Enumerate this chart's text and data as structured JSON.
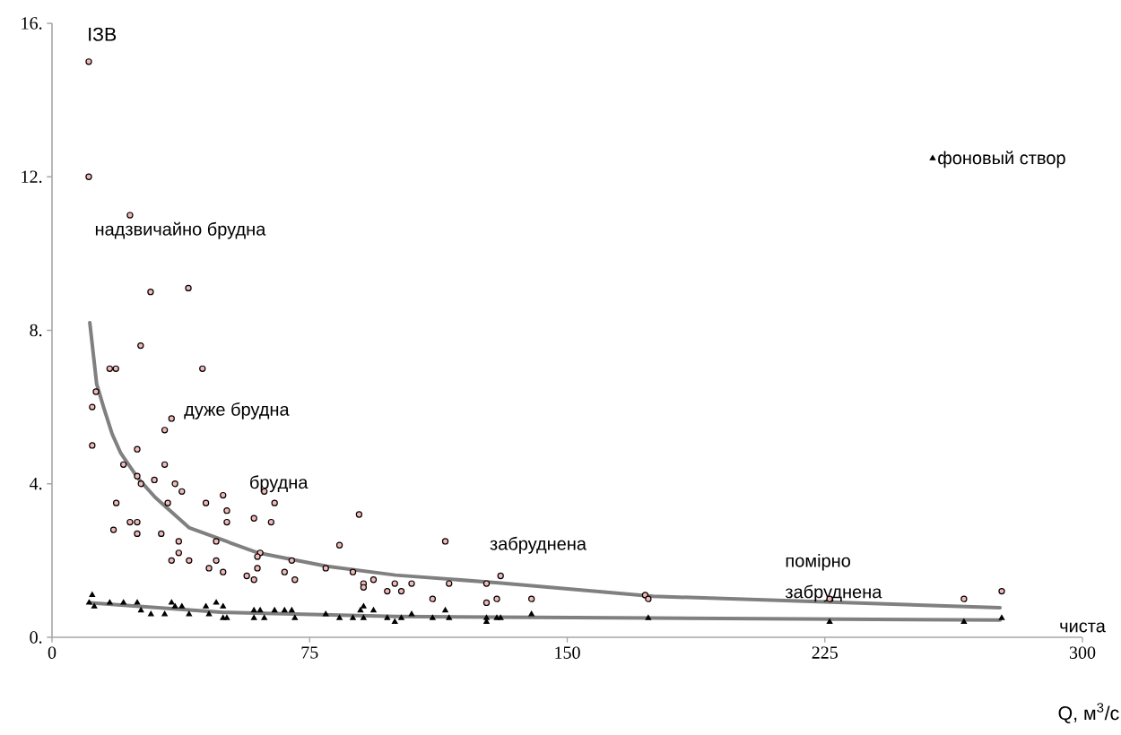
{
  "chart_data": {
    "type": "scatter",
    "xlabel": "Q, м$^{3}$/с",
    "ylabel": "ІЗВ",
    "xlim": [
      0,
      300
    ],
    "ylim": [
      0,
      16
    ],
    "xticks": [
      0,
      75,
      150,
      225,
      300
    ],
    "yticks": [
      {
        "value": 0,
        "label": "0."
      },
      {
        "value": 4,
        "label": "4."
      },
      {
        "value": 8,
        "label": "8."
      },
      {
        "value": 12,
        "label": "12."
      },
      {
        "value": 16,
        "label": "16."
      }
    ],
    "grid": false,
    "legend": "right",
    "annotations": [
      "надзвичайно брудна",
      "дуже брудна",
      "брудна",
      "забруднена",
      "помірно забруднена",
      "чиста"
    ],
    "series": [
      {
        "marker": "circle",
        "color": "#f4b8b8",
        "x": [
          10.7,
          10.7,
          22.7,
          28.7,
          39.7,
          16.8,
          18.6,
          25.8,
          43.8,
          12.8,
          11.7,
          34.8,
          32.8,
          11.7,
          24.8,
          20.8,
          32.8,
          24.8,
          29.8,
          25.9,
          35.8,
          37.8,
          49.8,
          61.8,
          33.7,
          18.7,
          44.8,
          64.8,
          50.9,
          50.9,
          58.8,
          63.8,
          22.7,
          24.8,
          17.9,
          24.8,
          31.8,
          36.9,
          47.8,
          36.9,
          34.8,
          39.9,
          47.8,
          45.7,
          49.8,
          60.6,
          59.8,
          59.8,
          56.7,
          58.8,
          67.7,
          69.8,
          70.7,
          83.7,
          79.7,
          87.6,
          89.4,
          114.5,
          90.7,
          90.7,
          93.6,
          97.6,
          99.8,
          101.7,
          104.7,
          110.8,
          115.6,
          126.5,
          126.5,
          129.5,
          130.6,
          139.6,
          172.7,
          173.6,
          226.4,
          265.5,
          276.5
        ],
        "values": [
          15.0,
          12.0,
          11.0,
          9.0,
          9.1,
          7.0,
          7.0,
          7.6,
          7.0,
          6.4,
          6.0,
          5.7,
          5.4,
          5.0,
          4.9,
          4.5,
          4.5,
          4.2,
          4.1,
          4.0,
          4.0,
          3.8,
          3.7,
          3.8,
          3.5,
          3.5,
          3.5,
          3.5,
          3.3,
          3.0,
          3.1,
          3.0,
          3.0,
          3.0,
          2.8,
          2.7,
          2.7,
          2.5,
          2.5,
          2.2,
          2.0,
          2.0,
          2.0,
          1.8,
          1.7,
          2.2,
          2.1,
          1.8,
          1.6,
          1.5,
          1.7,
          2.0,
          1.5,
          2.4,
          1.8,
          1.7,
          3.2,
          2.5,
          1.4,
          1.3,
          1.5,
          1.2,
          1.4,
          1.2,
          1.4,
          1.0,
          1.4,
          1.4,
          0.9,
          1.0,
          1.6,
          1.0,
          1.1,
          1.0,
          1.0,
          1.0,
          1.2
        ]
      },
      {
        "marker": "triangle",
        "name": "фоновый створ",
        "color": "#000000",
        "x": [
          11.7,
          10.8,
          12.3,
          16.8,
          20.8,
          24.8,
          25.9,
          28.8,
          32.8,
          34.8,
          35.8,
          37.8,
          39.9,
          44.8,
          45.7,
          47.8,
          49.8,
          49.8,
          50.9,
          58.8,
          58.8,
          60.6,
          61.8,
          64.8,
          67.7,
          69.8,
          70.7,
          79.7,
          83.7,
          87.6,
          90.7,
          89.8,
          93.6,
          90.7,
          97.6,
          99.8,
          101.7,
          104.7,
          110.8,
          114.5,
          115.6,
          126.5,
          126.5,
          129.5,
          130.6,
          139.6,
          173.6,
          226.4,
          265.5,
          276.5
        ],
        "values": [
          1.1,
          0.9,
          0.8,
          0.9,
          0.9,
          0.9,
          0.7,
          0.6,
          0.6,
          0.9,
          0.8,
          0.8,
          0.6,
          0.8,
          0.6,
          0.9,
          0.8,
          0.5,
          0.5,
          0.7,
          0.5,
          0.7,
          0.5,
          0.7,
          0.7,
          0.7,
          0.5,
          0.6,
          0.5,
          0.5,
          0.8,
          0.7,
          0.7,
          0.5,
          0.5,
          0.4,
          0.5,
          0.6,
          0.5,
          0.7,
          0.5,
          0.5,
          0.4,
          0.5,
          0.5,
          0.6,
          0.5,
          0.4,
          0.4,
          0.5
        ]
      },
      {
        "type": "line",
        "line_style": "solid",
        "color": "#808080",
        "x": [
          11,
          13,
          15,
          17.5,
          20,
          25,
          30,
          40,
          60,
          80,
          100,
          130,
          175,
          225,
          276
        ],
        "values": [
          8.2,
          6.6,
          6.0,
          5.3,
          4.8,
          4.15,
          3.65,
          2.85,
          2.2,
          1.85,
          1.62,
          1.42,
          1.07,
          0.92,
          0.77
        ]
      },
      {
        "type": "line",
        "line_style": "solid",
        "color": "#808080",
        "x": [
          11,
          50,
          100,
          175,
          276
        ],
        "values": [
          0.9,
          0.65,
          0.54,
          0.5,
          0.45
        ]
      }
    ]
  }
}
